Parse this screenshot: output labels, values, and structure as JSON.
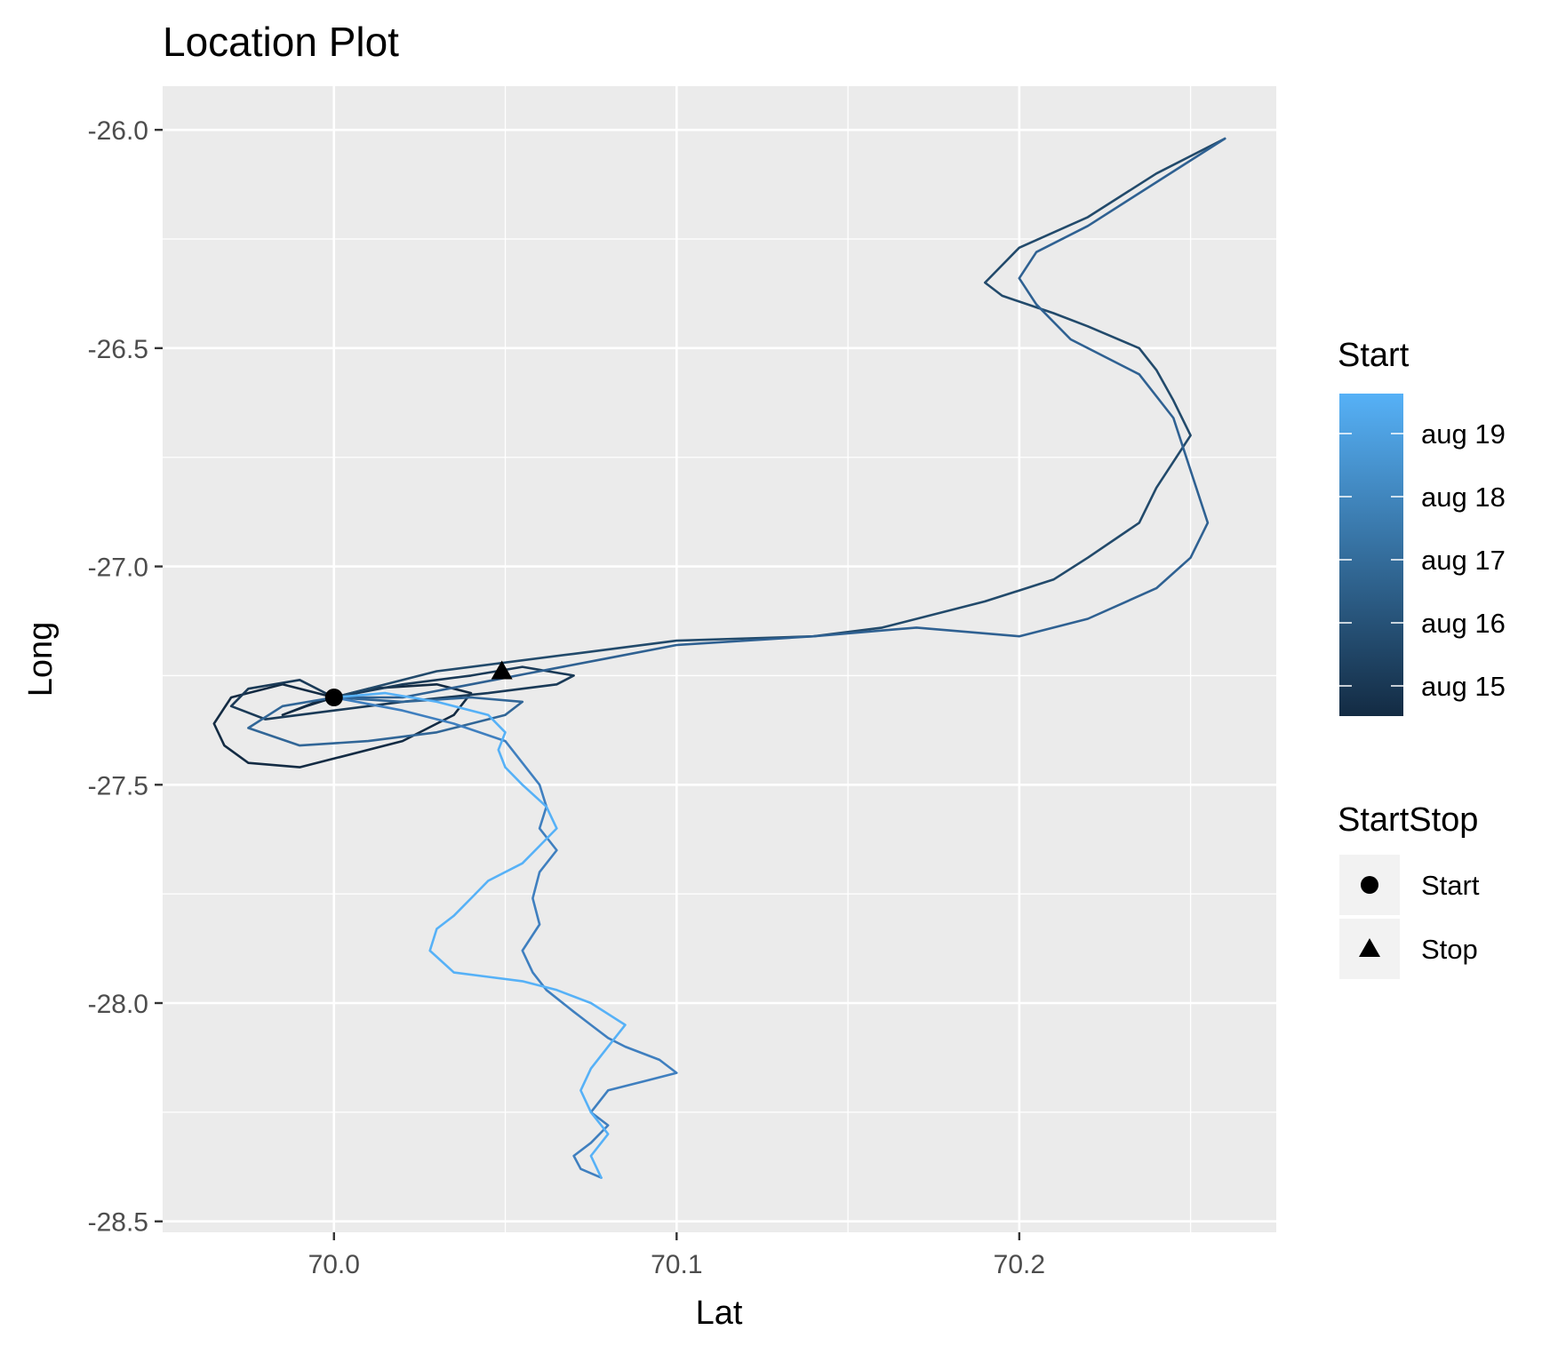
{
  "chart_data": {
    "type": "line",
    "title": "Location Plot",
    "xlabel": "Lat",
    "ylabel": "Long",
    "xlim": [
      69.95,
      70.275
    ],
    "ylim": [
      -28.525,
      -25.9
    ],
    "x_ticks": [
      70.0,
      70.1,
      70.2
    ],
    "x_tick_labels": [
      "70.0",
      "70.1",
      "70.2"
    ],
    "y_ticks": [
      -26.0,
      -26.5,
      -27.0,
      -27.5,
      -28.0,
      -28.5
    ],
    "y_tick_labels": [
      "-26.0",
      "-26.5",
      "-27.0",
      "-27.5",
      "-28.0",
      "-28.5"
    ],
    "grid": true,
    "panel_background": "#ebebeb",
    "grid_color": "#ffffff",
    "color_legend": {
      "title": "Start",
      "labels": [
        "aug 19",
        "aug 18",
        "aug 17",
        "aug 16",
        "aug 15"
      ],
      "gradient_low": "#132b43",
      "gradient_high": "#56b1f7",
      "placement": "right"
    },
    "shape_legend": {
      "title": "StartStop",
      "entries": [
        {
          "label": "Start",
          "shape": "circle"
        },
        {
          "label": "Stop",
          "shape": "triangle"
        }
      ]
    },
    "markers": [
      {
        "label": "Start",
        "shape": "circle",
        "x": 70.0,
        "y": -27.3
      },
      {
        "label": "Stop",
        "shape": "triangle",
        "x": 70.049,
        "y": -27.24
      }
    ],
    "series": [
      {
        "day": "aug 15",
        "color": "#132b43",
        "x": [
          70.0,
          69.985,
          69.97,
          69.965,
          69.968,
          69.975,
          69.99,
          70.0,
          70.02,
          70.035,
          70.04,
          70.03,
          70.01,
          69.995,
          69.985,
          69.992,
          70.0
        ],
        "y": [
          -27.3,
          -27.27,
          -27.3,
          -27.36,
          -27.41,
          -27.45,
          -27.46,
          -27.44,
          -27.4,
          -27.34,
          -27.29,
          -27.27,
          -27.28,
          -27.31,
          -27.34,
          -27.32,
          -27.3
        ]
      },
      {
        "day": "aug 15",
        "color": "#1a3a57",
        "x": [
          70.0,
          70.02,
          70.04,
          70.055,
          70.07,
          70.065,
          70.045,
          70.02,
          70.0,
          69.98,
          69.97,
          69.975,
          69.99,
          70.0
        ],
        "y": [
          -27.3,
          -27.27,
          -27.25,
          -27.23,
          -27.25,
          -27.27,
          -27.29,
          -27.31,
          -27.33,
          -27.35,
          -27.32,
          -27.28,
          -27.26,
          -27.3
        ]
      },
      {
        "day": "aug 16",
        "color": "#224a6b",
        "x": [
          70.0,
          70.03,
          70.07,
          70.1,
          70.14,
          70.16,
          70.19,
          70.21,
          70.22,
          70.235,
          70.24,
          70.25,
          70.245,
          70.24,
          70.235,
          70.22,
          70.21,
          70.195,
          70.19,
          70.2,
          70.22,
          70.24,
          70.26
        ],
        "y": [
          -27.3,
          -27.24,
          -27.2,
          -27.17,
          -27.16,
          -27.14,
          -27.08,
          -27.03,
          -26.98,
          -26.9,
          -26.82,
          -26.7,
          -26.62,
          -26.55,
          -26.5,
          -26.45,
          -26.42,
          -26.38,
          -26.35,
          -26.27,
          -26.2,
          -26.1,
          -26.02
        ]
      },
      {
        "day": "aug 17",
        "color": "#2f6192",
        "x": [
          70.26,
          70.24,
          70.22,
          70.205,
          70.2,
          70.205,
          70.215,
          70.235,
          70.245,
          70.25,
          70.255,
          70.25,
          70.24,
          70.22,
          70.2,
          70.17,
          70.14,
          70.1,
          70.08,
          70.06,
          70.04,
          70.02,
          70.0
        ],
        "y": [
          -26.02,
          -26.12,
          -26.22,
          -26.28,
          -26.34,
          -26.4,
          -26.48,
          -26.56,
          -26.66,
          -26.78,
          -26.9,
          -26.98,
          -27.05,
          -27.12,
          -27.16,
          -27.14,
          -27.16,
          -27.18,
          -27.21,
          -27.24,
          -27.27,
          -27.3,
          -27.3
        ]
      },
      {
        "day": "aug 17",
        "color": "#316697",
        "x": [
          70.0,
          69.985,
          69.975,
          69.99,
          70.01,
          70.03,
          70.05,
          70.055,
          70.04,
          70.02,
          70.0
        ],
        "y": [
          -27.3,
          -27.32,
          -27.37,
          -27.41,
          -27.4,
          -27.38,
          -27.34,
          -27.31,
          -27.3,
          -27.31,
          -27.3
        ]
      },
      {
        "day": "aug 18",
        "color": "#3f7fbf",
        "x": [
          70.0,
          70.02,
          70.035,
          70.05,
          70.055,
          70.06,
          70.062,
          70.06,
          70.065,
          70.06,
          70.058,
          70.06,
          70.055,
          70.058,
          70.062,
          70.07,
          70.075,
          70.08,
          70.085,
          70.095,
          70.1,
          70.09,
          70.08,
          70.075,
          70.08,
          70.075,
          70.07,
          70.072,
          70.078
        ],
        "y": [
          -27.3,
          -27.33,
          -27.36,
          -27.4,
          -27.45,
          -27.5,
          -27.55,
          -27.6,
          -27.65,
          -27.7,
          -27.76,
          -27.82,
          -27.88,
          -27.93,
          -27.97,
          -28.02,
          -28.05,
          -28.08,
          -28.1,
          -28.13,
          -28.16,
          -28.18,
          -28.2,
          -28.25,
          -28.28,
          -28.32,
          -28.35,
          -28.38,
          -28.4
        ]
      },
      {
        "day": "aug 19",
        "color": "#56b1f7",
        "x": [
          70.078,
          70.075,
          70.08,
          70.075,
          70.072,
          70.075,
          70.08,
          70.085,
          70.075,
          70.065,
          70.055,
          70.045,
          70.035,
          70.028,
          70.03,
          70.035,
          70.04,
          70.045,
          70.055,
          70.06,
          70.065,
          70.062,
          70.055,
          70.05,
          70.048,
          70.05,
          70.045,
          70.03,
          70.015,
          70.0
        ],
        "y": [
          -28.4,
          -28.35,
          -28.3,
          -28.25,
          -28.2,
          -28.15,
          -28.1,
          -28.05,
          -28.0,
          -27.97,
          -27.95,
          -27.94,
          -27.93,
          -27.88,
          -27.83,
          -27.8,
          -27.76,
          -27.72,
          -27.68,
          -27.64,
          -27.6,
          -27.55,
          -27.5,
          -27.46,
          -27.42,
          -27.38,
          -27.34,
          -27.31,
          -27.29,
          -27.3
        ]
      }
    ]
  }
}
